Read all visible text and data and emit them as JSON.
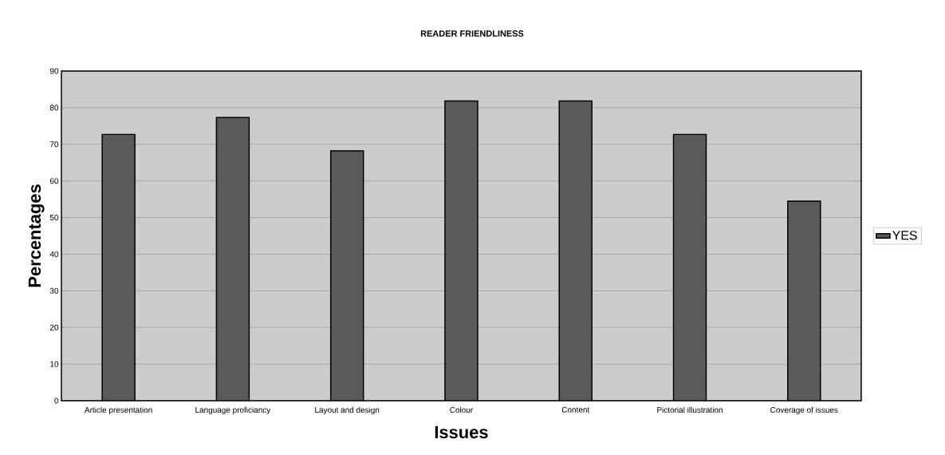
{
  "chart_data": {
    "type": "bar",
    "title": "READER FRIENDLINESS",
    "xlabel": "Issues",
    "ylabel": "Percentages",
    "categories": [
      "Article presentation",
      "Language proficiancy",
      "Layout and design",
      "Colour",
      "Content",
      "Pictorial illustration",
      "Coverage of issues"
    ],
    "series": [
      {
        "name": "YES",
        "color": "#5a5a5a",
        "values": [
          72.7,
          77.3,
          68.2,
          81.8,
          81.8,
          72.7,
          54.5
        ]
      }
    ],
    "ylim": [
      0,
      90
    ],
    "yticks": [
      0,
      10,
      20,
      30,
      40,
      50,
      60,
      70,
      80,
      90
    ],
    "grid": "y",
    "legend": "right"
  }
}
